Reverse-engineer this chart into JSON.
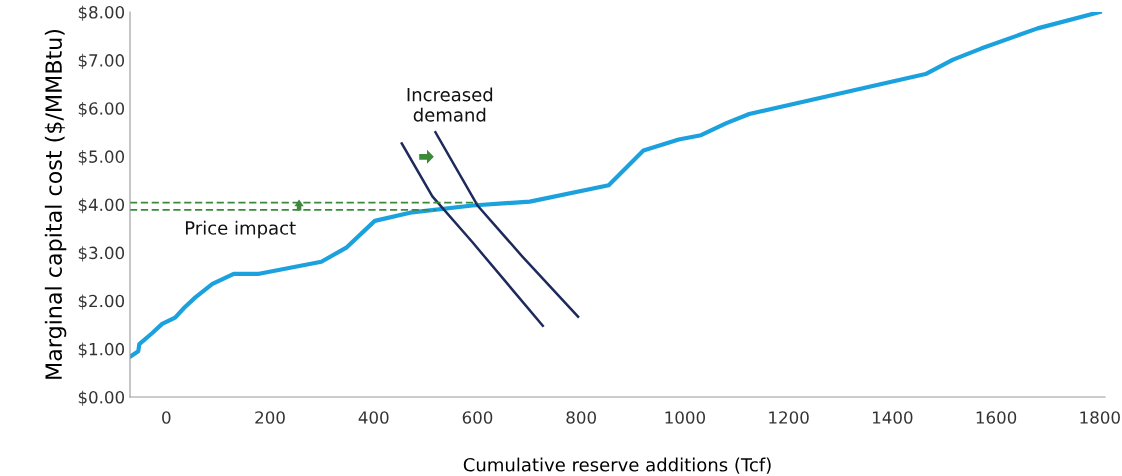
{
  "chart_data": {
    "type": "line",
    "xlabel": "Cumulative reserve additions (Tcf)",
    "ylabel": "Marginal capital cost ($/MMBtu)",
    "xlim": [
      -70,
      1810
    ],
    "xticks": [
      0,
      200,
      400,
      600,
      800,
      1000,
      1200,
      1400,
      1600,
      1800
    ],
    "ylim": [
      0,
      8
    ],
    "yticks": [
      {
        "value": 0,
        "label": "$0.00"
      },
      {
        "value": 1,
        "label": "$1.00"
      },
      {
        "value": 2,
        "label": "$2.00"
      },
      {
        "value": 3,
        "label": "$3.00"
      },
      {
        "value": 4,
        "label": "$4.00"
      },
      {
        "value": 5,
        "label": "$5.00"
      },
      {
        "value": 6,
        "label": "$6.00"
      },
      {
        "value": 7,
        "label": "$7.00"
      },
      {
        "value": 8,
        "label": "$8.00"
      }
    ],
    "grid": false,
    "legend": false,
    "marker": "none",
    "series": [
      {
        "color": "#1ba1dd",
        "line_style": "solid",
        "x": [
          -68,
          -54,
          -52,
          -27,
          -8,
          17,
          35,
          56,
          89,
          130,
          179,
          299,
          348,
          402,
          470,
          590,
          701,
          853,
          920,
          988,
          1031,
          1080,
          1124,
          1464,
          1517,
          1571,
          1680,
          1800
        ],
        "values": [
          0.85,
          0.95,
          1.1,
          1.33,
          1.52,
          1.65,
          1.86,
          2.07,
          2.35,
          2.56,
          2.56,
          2.81,
          3.11,
          3.66,
          3.83,
          3.98,
          4.06,
          4.4,
          5.12,
          5.35,
          5.44,
          5.69,
          5.88,
          6.71,
          7.01,
          7.24,
          7.66,
          8.0
        ]
      },
      {
        "color": "#1f2a5c",
        "line_style": "solid",
        "x": [
          454,
          513,
          590,
          726
        ],
        "values": [
          5.27,
          4.17,
          3.22,
          1.48
        ]
      },
      {
        "color": "#1f2a5c",
        "line_style": "solid",
        "x": [
          519,
          600,
          688,
          794
        ],
        "values": [
          5.5,
          3.98,
          2.9,
          1.67
        ]
      },
      {
        "color": "#3a8a3a",
        "line_style": "dashed",
        "x": [
          -70,
          600
        ],
        "values": [
          4.04,
          4.04
        ]
      },
      {
        "color": "#3a8a3a",
        "line_style": "dashed",
        "x": [
          -70,
          520
        ],
        "values": [
          3.89,
          3.89
        ]
      }
    ],
    "annotations": [
      "Increased demand",
      "Price impact"
    ]
  }
}
